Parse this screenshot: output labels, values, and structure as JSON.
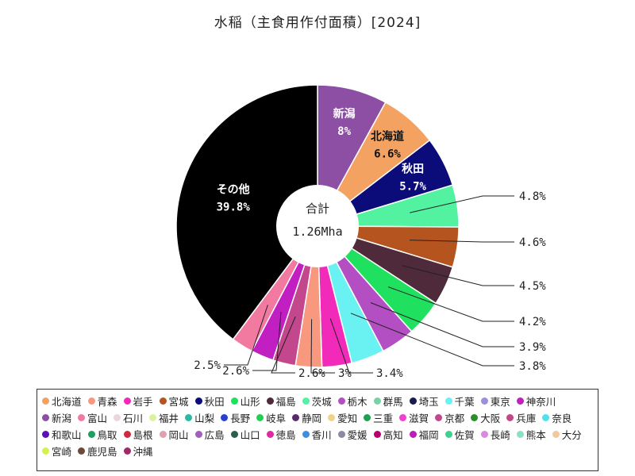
{
  "chart_data": {
    "type": "pie",
    "title": "水稲（主食用作付面積）[2024]",
    "center_label": "合計",
    "center_value": "1.26Mha",
    "slices": [
      {
        "name": "新潟",
        "value": 8.0,
        "label": "8%",
        "color": "#8d4fa3",
        "label_inside": true
      },
      {
        "name": "北海道",
        "value": 6.6,
        "label": "6.6%",
        "color": "#f4a261",
        "label_inside": true
      },
      {
        "name": "秋田",
        "value": 5.7,
        "label": "5.7%",
        "color": "#0b0b7a",
        "label_inside": true
      },
      {
        "name": "茨城",
        "value": 4.8,
        "label": "4.8%",
        "color": "#52f2a0",
        "label_inside": false
      },
      {
        "name": "宮城",
        "value": 4.6,
        "label": "4.6%",
        "color": "#b5541e",
        "label_inside": false
      },
      {
        "name": "福島",
        "value": 4.5,
        "label": "4.5%",
        "color": "#4f2a3a",
        "label_inside": false
      },
      {
        "name": "山形",
        "value": 4.2,
        "label": "4.2%",
        "color": "#1fe05f",
        "label_inside": false
      },
      {
        "name": "栃木",
        "value": 3.9,
        "label": "3.9%",
        "color": "#b34fc2",
        "label_inside": false
      },
      {
        "name": "千葉",
        "value": 3.8,
        "label": "3.8%",
        "color": "#6af2f2",
        "label_inside": false
      },
      {
        "name": "岩手",
        "value": 3.4,
        "label": "3.4%",
        "color": "#f22ab9",
        "label_inside": false
      },
      {
        "name": "青森",
        "value": 3.0,
        "label": "3%",
        "color": "#f7987f",
        "label_inside": false
      },
      {
        "name": "兵庫",
        "value": 2.6,
        "label": "2.6%",
        "color": "#c2478c",
        "label_inside": false
      },
      {
        "name": "神奈川",
        "value": 2.6,
        "label": "2.6%",
        "color": "#c21fc2",
        "label_inside": false
      },
      {
        "name": "富山",
        "value": 2.5,
        "label": "2.5%",
        "color": "#f27aa0",
        "label_inside": false
      },
      {
        "name": "その他",
        "value": 39.8,
        "label": "39.8%",
        "color": "#000000",
        "label_inside": true
      }
    ],
    "legend": [
      {
        "name": "北海道",
        "color": "#f4a261"
      },
      {
        "name": "青森",
        "color": "#f7987f"
      },
      {
        "name": "岩手",
        "color": "#f22ab9"
      },
      {
        "name": "宮城",
        "color": "#b5541e"
      },
      {
        "name": "秋田",
        "color": "#0b0b7a"
      },
      {
        "name": "山形",
        "color": "#1fe05f"
      },
      {
        "name": "福島",
        "color": "#4f2a3a"
      },
      {
        "name": "茨城",
        "color": "#52f2a0"
      },
      {
        "name": "栃木",
        "color": "#b34fc2"
      },
      {
        "name": "群馬",
        "color": "#7ad1a8"
      },
      {
        "name": "埼玉",
        "color": "#1a1a4f"
      },
      {
        "name": "千葉",
        "color": "#6af2f2"
      },
      {
        "name": "東京",
        "color": "#9c8fdc"
      },
      {
        "name": "神奈川",
        "color": "#c21fc2"
      },
      {
        "name": "新潟",
        "color": "#8d4fa3"
      },
      {
        "name": "富山",
        "color": "#f27aa0"
      },
      {
        "name": "石川",
        "color": "#ead6dc"
      },
      {
        "name": "福井",
        "color": "#d8f2a0"
      },
      {
        "name": "山梨",
        "color": "#2ab9a6"
      },
      {
        "name": "長野",
        "color": "#2a3fd1"
      },
      {
        "name": "岐阜",
        "color": "#1fd14f"
      },
      {
        "name": "静岡",
        "color": "#5a2a6a"
      },
      {
        "name": "愛知",
        "color": "#f2d28a"
      },
      {
        "name": "三重",
        "color": "#1fa04f"
      },
      {
        "name": "滋賀",
        "color": "#f23fd1"
      },
      {
        "name": "京都",
        "color": "#c2478c"
      },
      {
        "name": "大阪",
        "color": "#2a8f2a"
      },
      {
        "name": "兵庫",
        "color": "#c2478c"
      },
      {
        "name": "奈良",
        "color": "#4fe0f2"
      },
      {
        "name": "和歌山",
        "color": "#5a0fb9"
      },
      {
        "name": "鳥取",
        "color": "#1fa05f"
      },
      {
        "name": "島根",
        "color": "#d12a3f"
      },
      {
        "name": "岡山",
        "color": "#e0a0b0"
      },
      {
        "name": "広島",
        "color": "#a05fb9"
      },
      {
        "name": "山口",
        "color": "#2a5f4f"
      },
      {
        "name": "徳島",
        "color": "#e02aa0"
      },
      {
        "name": "香川",
        "color": "#3f8fe0"
      },
      {
        "name": "愛媛",
        "color": "#8a8aa0"
      },
      {
        "name": "高知",
        "color": "#b9006a"
      },
      {
        "name": "福岡",
        "color": "#b91fb9"
      },
      {
        "name": "佐賀",
        "color": "#3fd18f"
      },
      {
        "name": "長崎",
        "color": "#d88ae0"
      },
      {
        "name": "熊本",
        "color": "#8fe0c2"
      },
      {
        "name": "大分",
        "color": "#f2c8a0"
      },
      {
        "name": "宮崎",
        "color": "#d1f24f"
      },
      {
        "name": "鹿児島",
        "color": "#6a4a3a"
      },
      {
        "name": "沖縄",
        "color": "#9f2a6a"
      }
    ]
  }
}
